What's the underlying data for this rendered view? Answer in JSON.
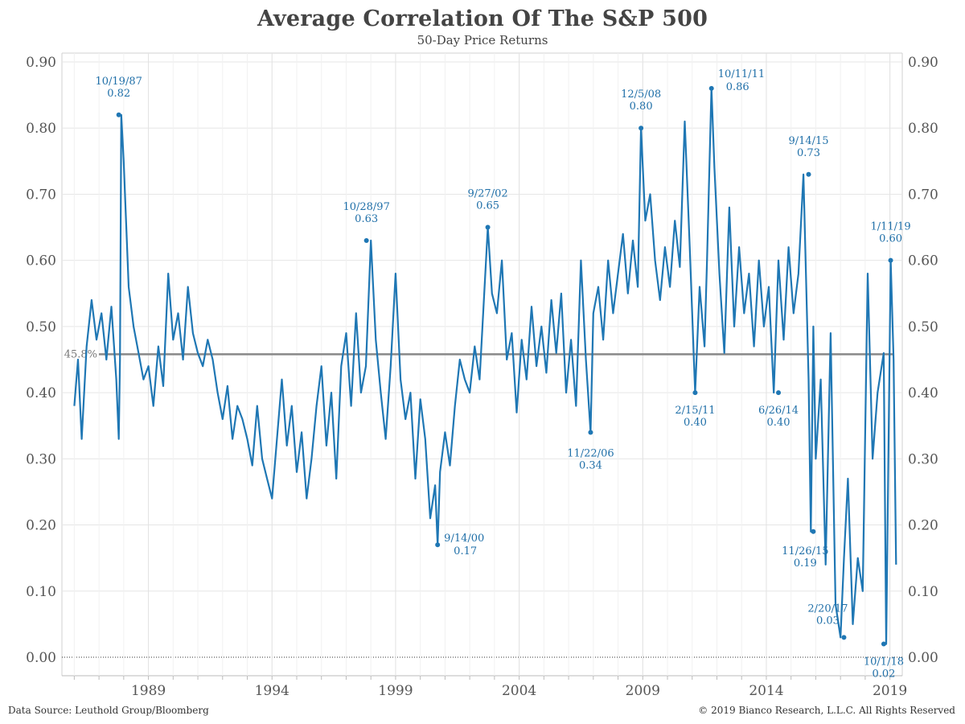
{
  "title": "Average Correlation Of The S&P 500",
  "subtitle": "50-Day Price Returns",
  "footer": {
    "source": "Data Source: Leuthold Group/Bloomberg",
    "copyright": "© 2019 Bianco Research, L.L.C. All Rights Reserved"
  },
  "colors": {
    "series": "#1f77b4",
    "mean_line": "#888888",
    "annotation": "#1f6fa8",
    "grid": "#e6e6e6"
  },
  "chart_data": {
    "type": "line",
    "ylim": [
      0,
      0.9
    ],
    "xlim": [
      1985.5,
      2019.5
    ],
    "y_ticks": [
      "0.00",
      "0.10",
      "0.20",
      "0.30",
      "0.40",
      "0.50",
      "0.60",
      "0.70",
      "0.80",
      "0.90"
    ],
    "x_tick_labels": [
      "1989",
      "1994",
      "1999",
      "2004",
      "2009",
      "2014",
      "2019"
    ],
    "grid": true,
    "mean": {
      "value": 0.458,
      "label": "45.8%"
    },
    "series": [
      {
        "x": [
          1986.0,
          1986.15,
          1986.3,
          1986.5,
          1986.7,
          1986.9,
          1987.1,
          1987.3,
          1987.5,
          1987.7,
          1987.8,
          1987.85,
          1987.9,
          1988.0,
          1988.2,
          1988.4,
          1988.6,
          1988.8,
          1989.0,
          1989.2,
          1989.4,
          1989.6,
          1989.8,
          1990.0,
          1990.2,
          1990.4,
          1990.6,
          1990.8,
          1991.0,
          1991.2,
          1991.4,
          1991.6,
          1991.8,
          1992.0,
          1992.2,
          1992.4,
          1992.6,
          1992.8,
          1993.0,
          1993.2,
          1993.4,
          1993.6,
          1993.8,
          1994.0,
          1994.2,
          1994.4,
          1994.6,
          1994.8,
          1995.0,
          1995.2,
          1995.4,
          1995.6,
          1995.8,
          1996.0,
          1996.2,
          1996.4,
          1996.6,
          1996.8,
          1997.0,
          1997.2,
          1997.4,
          1997.6,
          1997.8,
          1998.0,
          1998.2,
          1998.4,
          1998.6,
          1998.8,
          1999.0,
          1999.2,
          1999.4,
          1999.6,
          1999.8,
          2000.0,
          2000.2,
          2000.4,
          2000.6,
          2000.7,
          2000.8,
          2001.0,
          2001.2,
          2001.4,
          2001.6,
          2001.8,
          2002.0,
          2002.2,
          2002.4,
          2002.6,
          2002.73,
          2002.9,
          2003.1,
          2003.3,
          2003.5,
          2003.7,
          2003.9,
          2004.1,
          2004.3,
          2004.5,
          2004.7,
          2004.9,
          2005.1,
          2005.3,
          2005.5,
          2005.7,
          2005.9,
          2006.1,
          2006.3,
          2006.5,
          2006.7,
          2006.89,
          2007.0,
          2007.2,
          2007.4,
          2007.6,
          2007.8,
          2008.0,
          2008.2,
          2008.4,
          2008.6,
          2008.8,
          2008.93,
          2009.1,
          2009.3,
          2009.5,
          2009.7,
          2009.9,
          2010.1,
          2010.3,
          2010.5,
          2010.7,
          2010.9,
          2011.12,
          2011.3,
          2011.5,
          2011.6,
          2011.78,
          2011.9,
          2012.1,
          2012.3,
          2012.5,
          2012.7,
          2012.9,
          2013.1,
          2013.3,
          2013.5,
          2013.7,
          2013.9,
          2014.1,
          2014.3,
          2014.49,
          2014.7,
          2014.9,
          2015.1,
          2015.3,
          2015.5,
          2015.71,
          2015.8,
          2015.9,
          2016.0,
          2016.2,
          2016.4,
          2016.6,
          2016.8,
          2017.0,
          2017.14,
          2017.3,
          2017.5,
          2017.7,
          2017.9,
          2018.1,
          2018.3,
          2018.5,
          2018.75,
          2018.85,
          2019.03,
          2019.15,
          2019.25
        ],
        "y": [
          0.38,
          0.45,
          0.33,
          0.47,
          0.54,
          0.48,
          0.52,
          0.45,
          0.53,
          0.42,
          0.33,
          0.45,
          0.82,
          0.75,
          0.56,
          0.5,
          0.46,
          0.42,
          0.44,
          0.38,
          0.47,
          0.41,
          0.58,
          0.48,
          0.52,
          0.45,
          0.56,
          0.49,
          0.46,
          0.44,
          0.48,
          0.45,
          0.4,
          0.36,
          0.41,
          0.33,
          0.38,
          0.36,
          0.33,
          0.29,
          0.38,
          0.3,
          0.27,
          0.24,
          0.33,
          0.42,
          0.32,
          0.38,
          0.28,
          0.34,
          0.24,
          0.3,
          0.38,
          0.44,
          0.32,
          0.4,
          0.27,
          0.44,
          0.49,
          0.38,
          0.52,
          0.4,
          0.44,
          0.63,
          0.48,
          0.4,
          0.33,
          0.44,
          0.58,
          0.42,
          0.36,
          0.4,
          0.27,
          0.39,
          0.33,
          0.21,
          0.26,
          0.17,
          0.28,
          0.34,
          0.29,
          0.38,
          0.45,
          0.42,
          0.4,
          0.47,
          0.42,
          0.56,
          0.65,
          0.55,
          0.52,
          0.6,
          0.45,
          0.49,
          0.37,
          0.48,
          0.42,
          0.53,
          0.44,
          0.5,
          0.43,
          0.54,
          0.46,
          0.55,
          0.4,
          0.48,
          0.38,
          0.6,
          0.45,
          0.34,
          0.52,
          0.56,
          0.48,
          0.6,
          0.52,
          0.58,
          0.64,
          0.55,
          0.63,
          0.56,
          0.8,
          0.66,
          0.7,
          0.6,
          0.54,
          0.62,
          0.56,
          0.66,
          0.59,
          0.81,
          0.62,
          0.4,
          0.56,
          0.47,
          0.6,
          0.86,
          0.74,
          0.58,
          0.46,
          0.68,
          0.5,
          0.62,
          0.52,
          0.58,
          0.47,
          0.6,
          0.5,
          0.56,
          0.4,
          0.6,
          0.48,
          0.62,
          0.52,
          0.58,
          0.73,
          0.42,
          0.19,
          0.5,
          0.3,
          0.42,
          0.14,
          0.49,
          0.08,
          0.03,
          0.15,
          0.27,
          0.05,
          0.15,
          0.1,
          0.58,
          0.3,
          0.4,
          0.46,
          0.02,
          0.6,
          0.45,
          0.14
        ]
      }
    ],
    "annotations": [
      {
        "date": "10/19/87",
        "value": "0.82",
        "x": 1987.8,
        "y": 0.82
      },
      {
        "date": "10/28/97",
        "value": "0.63",
        "x": 1997.82,
        "y": 0.63
      },
      {
        "date": "9/14/00",
        "value": "0.17",
        "x": 2000.7,
        "y": 0.17
      },
      {
        "date": "9/27/02",
        "value": "0.65",
        "x": 2002.73,
        "y": 0.65
      },
      {
        "date": "11/22/06",
        "value": "0.34",
        "x": 2006.89,
        "y": 0.34
      },
      {
        "date": "12/5/08",
        "value": "0.80",
        "x": 2008.93,
        "y": 0.8
      },
      {
        "date": "2/15/11",
        "value": "0.40",
        "x": 2011.12,
        "y": 0.4
      },
      {
        "date": "10/11/11",
        "value": "0.86",
        "x": 2011.78,
        "y": 0.86
      },
      {
        "date": "6/26/14",
        "value": "0.40",
        "x": 2014.49,
        "y": 0.4
      },
      {
        "date": "9/14/15",
        "value": "0.73",
        "x": 2015.71,
        "y": 0.73
      },
      {
        "date": "11/26/15",
        "value": "0.19",
        "x": 2015.9,
        "y": 0.19
      },
      {
        "date": "2/20/17",
        "value": "0.03",
        "x": 2017.14,
        "y": 0.03
      },
      {
        "date": "10/1/18",
        "value": "0.02",
        "x": 2018.75,
        "y": 0.02
      },
      {
        "date": "1/11/19",
        "value": "0.60",
        "x": 2019.03,
        "y": 0.6
      }
    ]
  }
}
